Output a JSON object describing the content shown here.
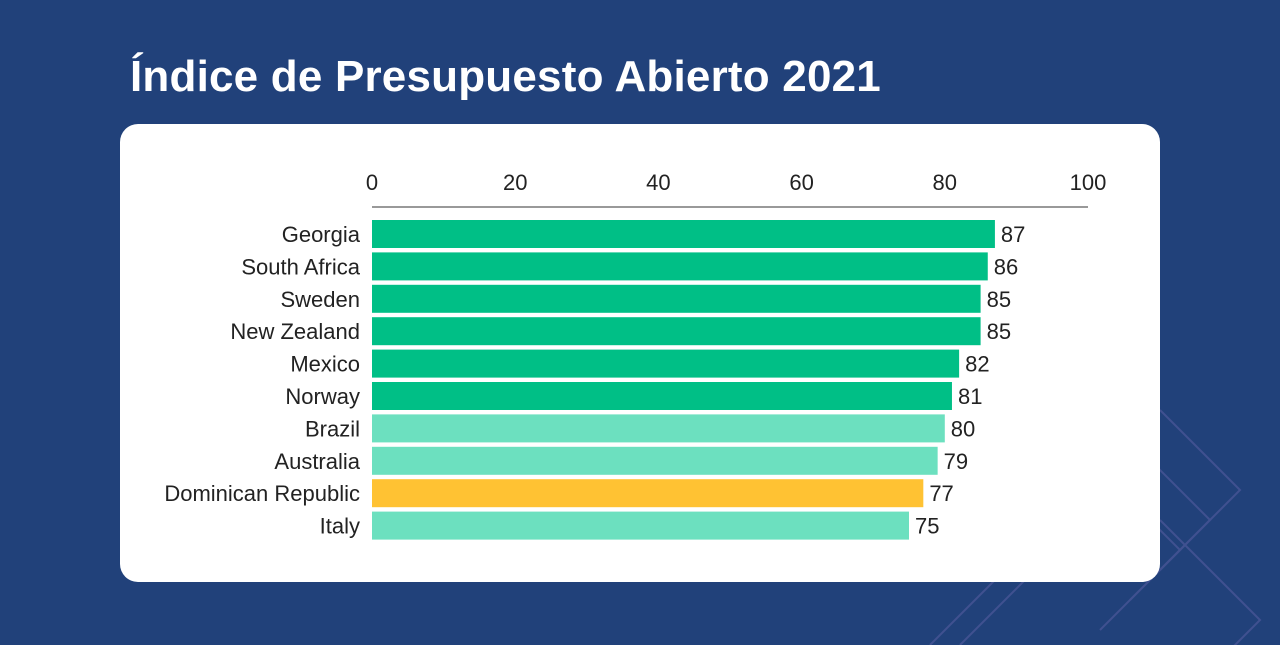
{
  "title": "Índice de Presupuesto Abierto 2021",
  "colors": {
    "background": "#21417a",
    "card": "#ffffff",
    "dark_green": "#00bf86",
    "light_green": "#6ce0bf",
    "highlight": "#ffc233",
    "axis": "#999999"
  },
  "chart_data": {
    "type": "bar",
    "orientation": "horizontal",
    "title": "Índice de Presupuesto Abierto 2021",
    "xlim": [
      0,
      100
    ],
    "xticks": [
      0,
      20,
      40,
      60,
      80,
      100
    ],
    "tick_position": "top",
    "grid": false,
    "legend": "none",
    "categories": [
      "Georgia",
      "South Africa",
      "Sweden",
      "New Zealand",
      "Mexico",
      "Norway",
      "Brazil",
      "Australia",
      "Dominican Republic",
      "Italy"
    ],
    "values": [
      87,
      86,
      85,
      85,
      82,
      81,
      80,
      79,
      77,
      75
    ],
    "bar_colors": [
      "#00bf86",
      "#00bf86",
      "#00bf86",
      "#00bf86",
      "#00bf86",
      "#00bf86",
      "#6ce0bf",
      "#6ce0bf",
      "#ffc233",
      "#6ce0bf"
    ]
  }
}
